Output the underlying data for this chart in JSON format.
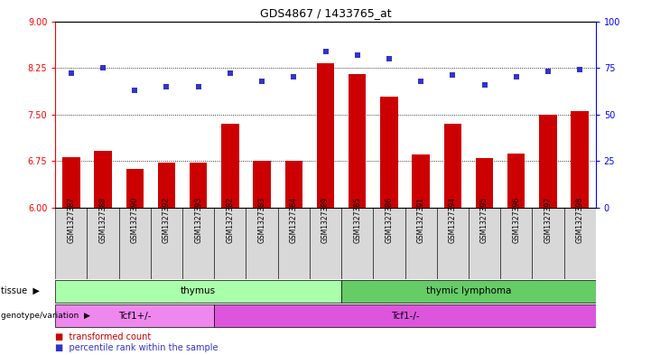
{
  "title": "GDS4867 / 1433765_at",
  "samples": [
    "GSM1327387",
    "GSM1327388",
    "GSM1327390",
    "GSM1327392",
    "GSM1327393",
    "GSM1327382",
    "GSM1327383",
    "GSM1327384",
    "GSM1327389",
    "GSM1327385",
    "GSM1327386",
    "GSM1327391",
    "GSM1327394",
    "GSM1327395",
    "GSM1327396",
    "GSM1327397",
    "GSM1327398"
  ],
  "bar_values": [
    6.82,
    6.92,
    6.63,
    6.72,
    6.73,
    7.35,
    6.75,
    6.75,
    8.32,
    8.15,
    7.78,
    6.85,
    7.35,
    6.8,
    6.87,
    7.5,
    7.55
  ],
  "dot_values": [
    72,
    75,
    63,
    65,
    65,
    72,
    68,
    70,
    84,
    82,
    80,
    68,
    71,
    66,
    70,
    73,
    74
  ],
  "bar_color": "#cc0000",
  "dot_color": "#3333cc",
  "ylim_left": [
    6,
    9
  ],
  "ylim_right": [
    0,
    100
  ],
  "yticks_left": [
    6,
    6.75,
    7.5,
    8.25,
    9
  ],
  "yticks_right": [
    0,
    25,
    50,
    75,
    100
  ],
  "grid_values": [
    6.75,
    7.5,
    8.25
  ],
  "tissue_groups": [
    {
      "label": "thymus",
      "start": 0,
      "end": 9,
      "color": "#aaffaa"
    },
    {
      "label": "thymic lymphoma",
      "start": 9,
      "end": 17,
      "color": "#55cc55"
    }
  ],
  "genotype_groups": [
    {
      "label": "Tcf1+/-",
      "start": 0,
      "end": 5,
      "color": "#ee88ee"
    },
    {
      "label": "Tcf1-/-",
      "start": 5,
      "end": 17,
      "color": "#cc44cc"
    }
  ],
  "tissue_label": "tissue",
  "genotype_label": "genotype/variation",
  "legend_bar_label": "transformed count",
  "legend_dot_label": "percentile rank within the sample"
}
